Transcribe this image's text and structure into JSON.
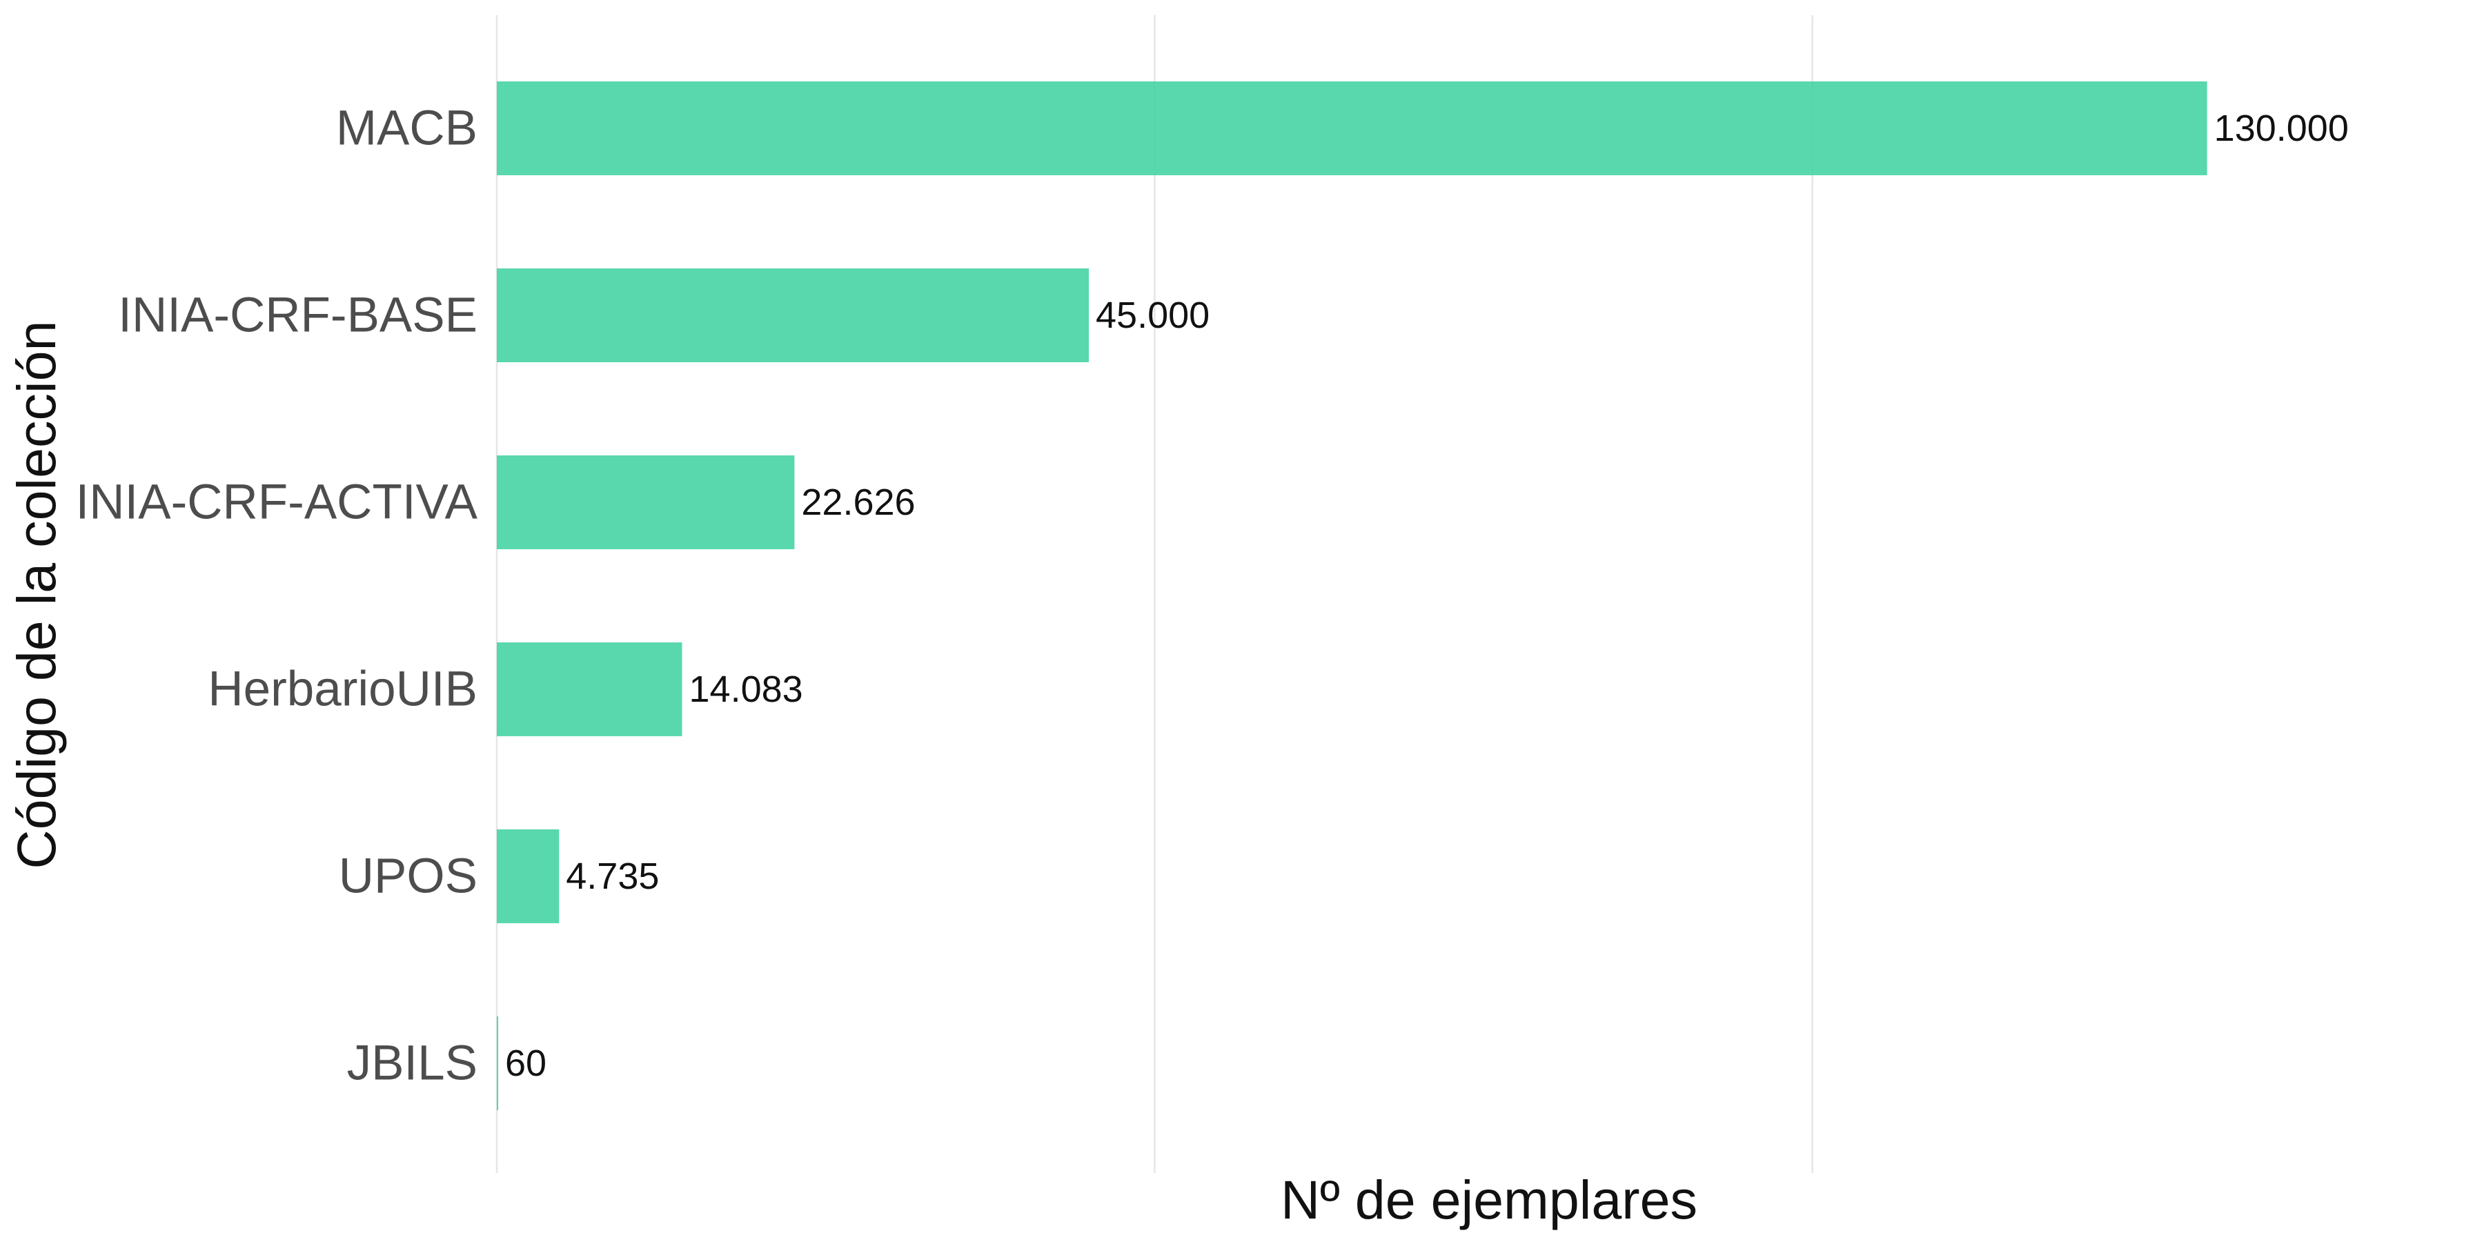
{
  "chart_data": {
    "type": "bar",
    "orientation": "horizontal",
    "categories": [
      "MACB",
      "INIA-CRF-BASE",
      "INIA-CRF-ACTIVA",
      "HerbarioUIB",
      "UPOS",
      "JBILS"
    ],
    "values": [
      130000,
      45000,
      22626,
      14083,
      4735,
      60
    ],
    "value_labels": [
      "130.000",
      "45.000",
      "22.626",
      "14.083",
      "4.735",
      "60"
    ],
    "title": "",
    "xlabel": "Nº de ejemplares",
    "ylabel": "Código de la colección",
    "xlim": [
      0,
      150000
    ],
    "x_gridlines": [
      0,
      50000,
      100000
    ],
    "show_x_tick_labels": false,
    "grid": true,
    "legend": "none",
    "bar_color": "#3dd19f",
    "bar_opacity": 0.85
  }
}
